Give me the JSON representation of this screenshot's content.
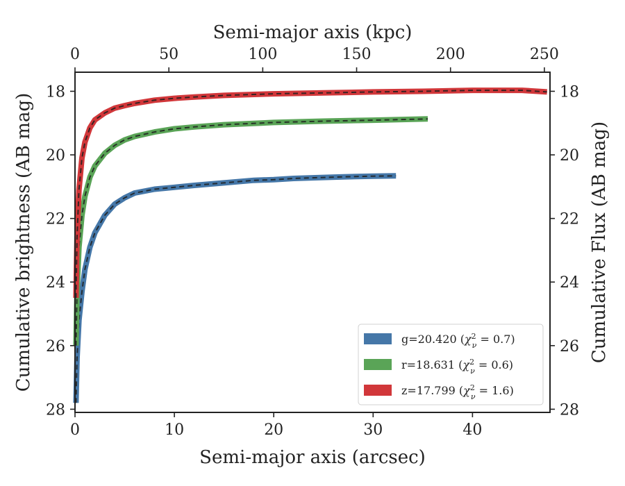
{
  "chart_data": {
    "type": "line",
    "title": "",
    "xlabel": "Semi-major axis (arcsec)",
    "x2label": "Semi-major axis (kpc)",
    "ylabel": "Cumulative brightness (AB mag)",
    "y2label": "Cumulative Flux (AB mag)",
    "xlim": [
      0,
      47.8
    ],
    "ylim": [
      28.1,
      17.4
    ],
    "x2lim": [
      0,
      253
    ],
    "xticks": [
      "0",
      "10",
      "20",
      "30",
      "40"
    ],
    "x2ticks": [
      "0",
      "50",
      "100",
      "150",
      "200",
      "250"
    ],
    "yticks": [
      "18",
      "20",
      "22",
      "24",
      "26",
      "28"
    ],
    "y2ticks": [
      "18",
      "20",
      "22",
      "24",
      "26",
      "28"
    ],
    "y_inverted": true,
    "grid": false,
    "legend_position": "lower-right",
    "series": [
      {
        "name": "g=20.420",
        "chi2": "0.7",
        "color": "#4577a8",
        "x": [
          0.1,
          0.2,
          0.4,
          0.7,
          1.0,
          1.5,
          2.0,
          3.0,
          4.0,
          5.0,
          6.0,
          8.0,
          10.0,
          12.0,
          15.0,
          18.0,
          20.0,
          22.0,
          25.0,
          27.0,
          30.0,
          32.3
        ],
        "y": [
          27.8,
          26.4,
          25.2,
          24.3,
          23.6,
          22.9,
          22.45,
          21.9,
          21.55,
          21.35,
          21.2,
          21.08,
          21.02,
          20.96,
          20.88,
          20.8,
          20.78,
          20.74,
          20.71,
          20.69,
          20.67,
          20.66
        ]
      },
      {
        "name": "r=18.631",
        "chi2": "0.6",
        "color": "#5aa457",
        "x": [
          0.1,
          0.2,
          0.4,
          0.7,
          1.0,
          1.5,
          2.0,
          3.0,
          4.0,
          5.0,
          6.0,
          8.0,
          10.0,
          12.0,
          15.0,
          20.0,
          25.0,
          30.0,
          35.5
        ],
        "y": [
          26.0,
          24.3,
          22.9,
          21.9,
          21.3,
          20.7,
          20.35,
          19.95,
          19.7,
          19.53,
          19.42,
          19.28,
          19.18,
          19.12,
          19.05,
          18.98,
          18.94,
          18.91,
          18.87
        ]
      },
      {
        "name": "z=17.799",
        "chi2": "1.6",
        "color": "#d1373a",
        "x": [
          0.1,
          0.2,
          0.4,
          0.7,
          1.0,
          1.5,
          2.0,
          3.0,
          4.0,
          5.0,
          6.0,
          8.0,
          10.0,
          12.0,
          15.0,
          20.0,
          25.0,
          30.0,
          35.0,
          40.0,
          45.0,
          47.5
        ],
        "y": [
          24.5,
          22.6,
          21.1,
          20.1,
          19.6,
          19.15,
          18.9,
          18.68,
          18.53,
          18.45,
          18.38,
          18.28,
          18.22,
          18.18,
          18.13,
          18.08,
          18.05,
          18.02,
          18.0,
          17.97,
          17.97,
          18.02
        ]
      }
    ]
  }
}
